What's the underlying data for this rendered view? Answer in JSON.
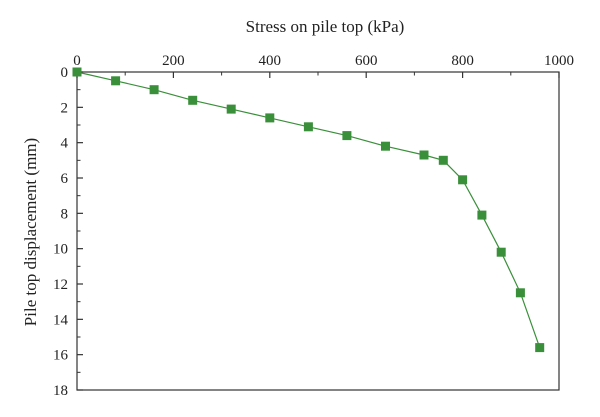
{
  "chart_data": {
    "type": "line",
    "xlabel": "Stress on pile top (kPa)",
    "ylabel": "Pile top displacement (mm)",
    "xlim": [
      0,
      1000
    ],
    "ylim": [
      0,
      18
    ],
    "y_inverted": true,
    "x_axis_position": "top",
    "grid": false,
    "x_ticks": [
      0,
      200,
      400,
      600,
      800,
      1000
    ],
    "y_ticks": [
      0,
      2,
      4,
      6,
      8,
      10,
      12,
      14,
      16,
      18
    ],
    "marker": "square",
    "series": [
      {
        "color": "#3a8f3a",
        "x": [
          0,
          80,
          160,
          240,
          320,
          400,
          480,
          560,
          640,
          720,
          760,
          800,
          840,
          880,
          920,
          960
        ],
        "y": [
          0,
          0.5,
          1.0,
          1.6,
          2.1,
          2.6,
          3.1,
          3.6,
          4.2,
          4.7,
          5.0,
          6.1,
          8.1,
          10.2,
          12.5,
          15.6
        ]
      }
    ]
  }
}
